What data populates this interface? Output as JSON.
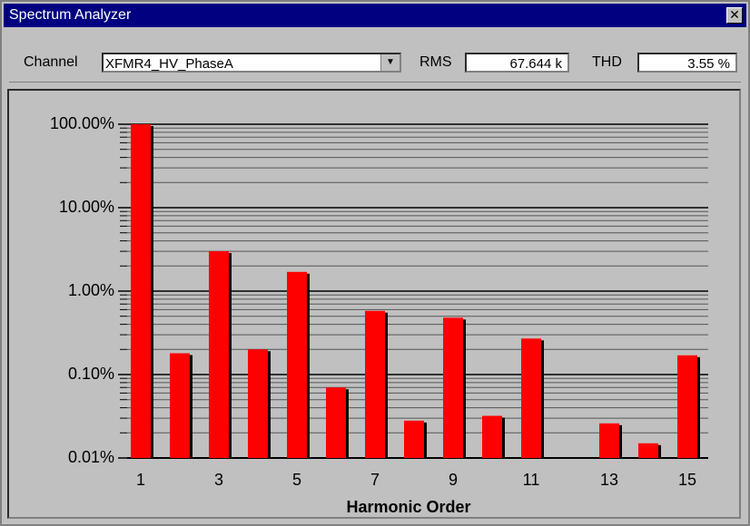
{
  "window": {
    "title": "Spectrum Analyzer"
  },
  "toolbar": {
    "channel_label": "Channel",
    "channel_value": "XFMR4_HV_PhaseA",
    "rms_label": "RMS",
    "rms_value": "67.644 k",
    "thd_label": "THD",
    "thd_value": "3.55 %"
  },
  "chart_data": {
    "type": "bar",
    "x_label": "Harmonic Order",
    "categories": [
      1,
      null,
      3,
      null,
      5,
      null,
      7,
      null,
      9,
      null,
      11,
      null,
      13,
      null,
      15
    ],
    "values": [
      100,
      0.18,
      3.0,
      0.2,
      1.7,
      0.07,
      0.58,
      0.028,
      0.48,
      0.032,
      0.27,
      null,
      0.026,
      0.015,
      0.17
    ],
    "color": "#ff0000",
    "log_scale": true,
    "grid": true,
    "minor_grid": true,
    "ylim": [
      0.01,
      100
    ],
    "yticks": [
      {
        "value": 0.01,
        "label": "0.01%"
      },
      {
        "value": 0.1,
        "label": "0.10%"
      },
      {
        "value": 1,
        "label": "1.00%"
      },
      {
        "value": 10,
        "label": "10.00%"
      },
      {
        "value": 100,
        "label": "100.00%"
      }
    ]
  }
}
